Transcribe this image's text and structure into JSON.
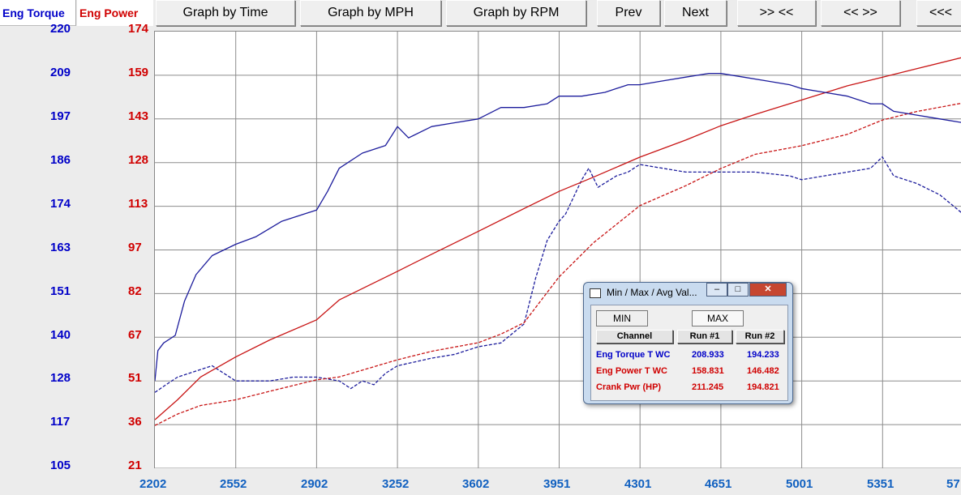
{
  "toolbar": {
    "tab_torque": "Eng Torque",
    "tab_power": "Eng Power",
    "buttons": [
      "Graph by Time",
      "Graph by MPH",
      "Graph by RPM",
      "Prev",
      "Next",
      ">> <<",
      "<< >>",
      "<<<"
    ]
  },
  "chart_data": {
    "type": "line",
    "x": {
      "ticks": [
        "2202",
        "2552",
        "2902",
        "3252",
        "3602",
        "3951",
        "4301",
        "4651",
        "5001",
        "5351",
        "57"
      ],
      "range": [
        2202,
        5701
      ]
    },
    "y_left": {
      "label": "Eng Torque",
      "color": "#0000c8",
      "ticks": [
        "220",
        "209",
        "197",
        "186",
        "174",
        "163",
        "151",
        "140",
        "128",
        "117",
        "105"
      ],
      "range": [
        105,
        220
      ]
    },
    "y_right": {
      "label": "Eng Power",
      "color": "#d00000",
      "ticks": [
        "174",
        "159",
        "143",
        "128",
        "113",
        "97",
        "82",
        "67",
        "51",
        "36",
        "21"
      ],
      "range": [
        21,
        174
      ]
    },
    "grid": true,
    "series": [
      {
        "name": "Eng Torque T WC",
        "run": 1,
        "axis": "left",
        "color": "#1c1c9c",
        "style": "solid",
        "x": [
          2202,
          2215,
          2240,
          2290,
          2330,
          2380,
          2450,
          2552,
          2640,
          2750,
          2850,
          2902,
          2950,
          3000,
          3100,
          3200,
          3252,
          3300,
          3400,
          3500,
          3602,
          3700,
          3800,
          3900,
          3951,
          4050,
          4150,
          4250,
          4301,
          4400,
          4500,
          4600,
          4651,
          4750,
          4850,
          4950,
          5001,
          5100,
          5200,
          5300,
          5351,
          5400,
          5500,
          5600,
          5700
        ],
        "y": [
          128,
          136,
          138,
          140,
          149,
          156,
          161,
          164,
          166,
          170,
          172,
          173,
          178,
          184,
          188,
          190,
          195,
          192,
          195,
          196,
          197,
          200,
          200,
          201,
          203,
          203,
          204,
          206,
          206,
          207,
          208,
          209,
          209,
          208,
          207,
          206,
          205,
          204,
          203,
          201,
          201,
          199,
          198,
          197,
          196
        ]
      },
      {
        "name": "Eng Power T WC",
        "run": 1,
        "axis": "right",
        "color": "#c81414",
        "style": "solid",
        "x": [
          2202,
          2300,
          2400,
          2552,
          2700,
          2902,
          3000,
          3252,
          3400,
          3602,
          3800,
          3951,
          4100,
          4301,
          4500,
          4651,
          4800,
          5001,
          5200,
          5351,
          5500,
          5700
        ],
        "y": [
          38,
          45,
          53,
          60,
          66,
          73,
          80,
          90,
          96,
          104,
          112,
          118,
          123,
          130,
          136,
          141,
          145,
          150,
          155,
          158,
          161,
          165
        ]
      },
      {
        "name": "Eng Torque T WC",
        "run": 2,
        "axis": "left",
        "color": "#1c1c9c",
        "style": "dashed",
        "x": [
          2202,
          2250,
          2300,
          2400,
          2450,
          2552,
          2700,
          2800,
          2902,
          3000,
          3050,
          3100,
          3150,
          3200,
          3252,
          3400,
          3500,
          3602,
          3700,
          3800,
          3850,
          3900,
          3951,
          3980,
          4050,
          4080,
          4120,
          4200,
          4250,
          4301,
          4400,
          4500,
          4651,
          4800,
          4950,
          5001,
          5100,
          5200,
          5300,
          5351,
          5400,
          5500,
          5600,
          5700
        ],
        "y": [
          125,
          127,
          129,
          131,
          132,
          128,
          128,
          129,
          129,
          128,
          126,
          128,
          127,
          130,
          132,
          134,
          135,
          137,
          138,
          143,
          155,
          165,
          170,
          172,
          181,
          184,
          179,
          182,
          183,
          185,
          184,
          183,
          183,
          183,
          182,
          181,
          182,
          183,
          184,
          187,
          182,
          180,
          177,
          172
        ]
      },
      {
        "name": "Eng Power T WC",
        "run": 2,
        "axis": "right",
        "color": "#c81414",
        "style": "dashed",
        "x": [
          2202,
          2300,
          2400,
          2552,
          2700,
          2902,
          3000,
          3252,
          3400,
          3602,
          3700,
          3800,
          3951,
          4100,
          4301,
          4500,
          4651,
          4800,
          5001,
          5200,
          5351,
          5500,
          5700
        ],
        "y": [
          36,
          40,
          43,
          45,
          48,
          52,
          53,
          59,
          62,
          65,
          68,
          72,
          88,
          100,
          113,
          120,
          126,
          131,
          134,
          138,
          143,
          146,
          149
        ]
      }
    ]
  },
  "popup": {
    "title": "Min / Max / Avg Val...",
    "min_label": "MIN",
    "max_label": "MAX",
    "headers": [
      "Channel",
      "Run #1",
      "Run #2"
    ],
    "rows": [
      {
        "channel": "Eng Torque T WC",
        "run1": "208.933",
        "run2": "194.233",
        "color": "#0000c8"
      },
      {
        "channel": "Eng Power T WC",
        "run1": "158.831",
        "run2": "146.482",
        "color": "#d00000"
      },
      {
        "channel": "Crank Pwr (HP)",
        "run1": "211.245",
        "run2": "194.821",
        "color": "#d00000"
      }
    ]
  }
}
